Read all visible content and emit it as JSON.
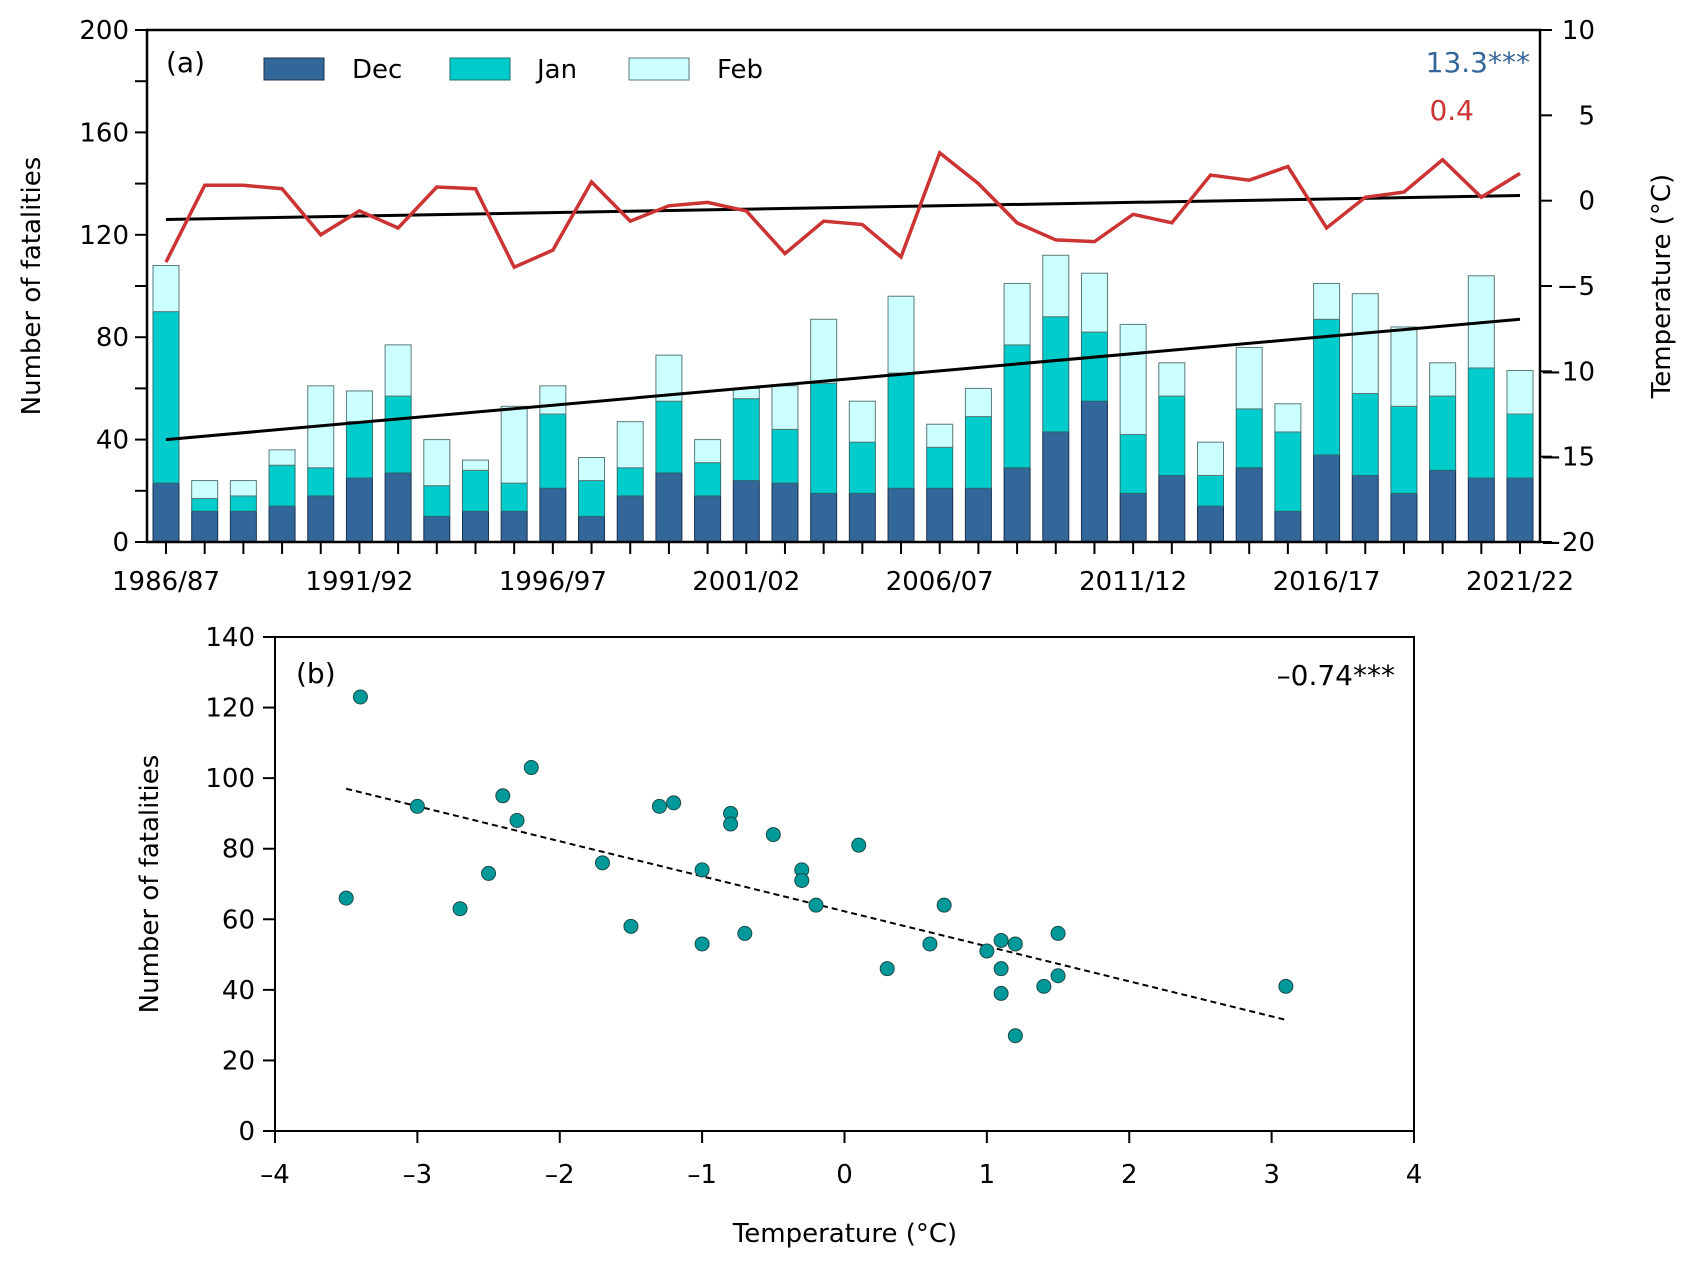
{
  "chart_data": [
    {
      "panel": "a",
      "type": "bar",
      "stacked": true,
      "panel_label": "(a)",
      "title": "",
      "xlabel": "",
      "ylabel": "Number of fatalities",
      "y2label": "Temperature (°C)",
      "ylim": [
        0,
        200
      ],
      "y2lim": [
        -20,
        10
      ],
      "yticks": [
        0,
        40,
        80,
        120,
        160,
        200
      ],
      "y2ticks": [
        -20,
        -15,
        -10,
        -5,
        0,
        5,
        10
      ],
      "grid": false,
      "legend_position": "top-left",
      "categories": [
        "1986/87",
        "1987/88",
        "1988/89",
        "1989/90",
        "1990/91",
        "1991/92",
        "1992/93",
        "1993/94",
        "1994/95",
        "1995/96",
        "1996/97",
        "1997/98",
        "1998/99",
        "1999/00",
        "2000/01",
        "2001/02",
        "2002/03",
        "2003/04",
        "2004/05",
        "2005/06",
        "2006/07",
        "2007/08",
        "2008/09",
        "2009/10",
        "2010/11",
        "2011/12",
        "2012/13",
        "2013/14",
        "2014/15",
        "2015/16",
        "2016/17",
        "2017/18",
        "2018/19",
        "2019/20",
        "2020/21",
        "2021/22"
      ],
      "xtick_labels": [
        "1986/87",
        "1991/92",
        "1996/97",
        "2001/02",
        "2006/07",
        "2011/12",
        "2016/17",
        "2021/22"
      ],
      "xtick_label_every": 5,
      "series": [
        {
          "name": "Dec",
          "color": "#336699",
          "values": [
            23,
            12,
            12,
            14,
            18,
            25,
            27,
            10,
            12,
            12,
            21,
            10,
            18,
            27,
            18,
            24,
            23,
            19,
            19,
            21,
            21,
            21,
            29,
            43,
            55,
            19,
            26,
            14,
            29,
            12,
            34,
            26,
            19,
            28,
            25,
            25
          ]
        },
        {
          "name": "Jan",
          "color": "#00CCCC",
          "values": [
            67,
            5,
            6,
            16,
            11,
            22,
            30,
            12,
            16,
            11,
            29,
            14,
            11,
            28,
            13,
            32,
            21,
            43,
            20,
            45,
            16,
            28,
            48,
            45,
            27,
            23,
            31,
            12,
            23,
            31,
            53,
            32,
            34,
            29,
            43,
            25
          ]
        },
        {
          "name": "Feb",
          "color": "#CCFFFF",
          "values": [
            18,
            7,
            6,
            6,
            32,
            12,
            20,
            18,
            4,
            30,
            11,
            9,
            18,
            18,
            9,
            4,
            17,
            25,
            16,
            30,
            9,
            11,
            24,
            24,
            23,
            43,
            13,
            13,
            24,
            11,
            14,
            39,
            31,
            13,
            36,
            17
          ]
        }
      ],
      "totals": [
        108,
        24,
        24,
        36,
        61,
        59,
        77,
        40,
        32,
        53,
        61,
        33,
        47,
        73,
        40,
        60,
        61,
        87,
        55,
        96,
        46,
        60,
        101,
        112,
        105,
        85,
        70,
        39,
        76,
        54,
        101,
        97,
        84,
        70,
        104,
        67
      ],
      "fatality_trend": {
        "start": 40,
        "end": 87,
        "label": "13.3***",
        "color": "#336699"
      },
      "temperature": {
        "name": "Temperature",
        "axis": "right",
        "color": "#CC3333",
        "values": [
          -3.6,
          0.9,
          0.9,
          0.7,
          -2.0,
          -0.6,
          -1.6,
          0.8,
          0.7,
          -3.9,
          -2.9,
          1.1,
          -1.2,
          -0.3,
          -0.1,
          -0.6,
          -3.1,
          -1.2,
          -1.4,
          -3.3,
          2.8,
          1.0,
          -1.3,
          -2.3,
          -2.4,
          -0.8,
          -1.3,
          1.5,
          1.2,
          2.0,
          -1.6,
          0.2,
          0.5,
          2.4,
          0.2,
          1.6
        ]
      },
      "temperature_trend": {
        "start": -1.1,
        "end": 0.3,
        "label": "0.4",
        "color": "#CC3333"
      }
    },
    {
      "panel": "b",
      "type": "scatter",
      "panel_label": "(b)",
      "title": "",
      "xlabel": "Temperature (°C)",
      "ylabel": "Number of fatalities",
      "xlim": [
        -4,
        4
      ],
      "ylim": [
        0,
        140
      ],
      "xticks": [
        -4,
        -3,
        -2,
        -1,
        0,
        1,
        2,
        3,
        4
      ],
      "yticks": [
        0,
        20,
        40,
        60,
        80,
        100,
        120,
        140
      ],
      "xtick_labels": [
        "–4",
        "–3",
        "–2",
        "–1",
        "0",
        "1",
        "2",
        "3",
        "4"
      ],
      "grid": false,
      "point_color": "#009999",
      "annotation": "–0.74***",
      "points": [
        {
          "x": -3.4,
          "y": 123
        },
        {
          "x": -3.5,
          "y": 66
        },
        {
          "x": -3.0,
          "y": 92
        },
        {
          "x": -2.7,
          "y": 63
        },
        {
          "x": -2.5,
          "y": 73
        },
        {
          "x": -2.4,
          "y": 95
        },
        {
          "x": -2.3,
          "y": 88
        },
        {
          "x": -2.2,
          "y": 103
        },
        {
          "x": -1.7,
          "y": 76
        },
        {
          "x": -1.5,
          "y": 58
        },
        {
          "x": -1.3,
          "y": 92
        },
        {
          "x": -1.2,
          "y": 93
        },
        {
          "x": -1.0,
          "y": 74
        },
        {
          "x": -1.0,
          "y": 53
        },
        {
          "x": -0.8,
          "y": 90
        },
        {
          "x": -0.8,
          "y": 87
        },
        {
          "x": -0.7,
          "y": 56
        },
        {
          "x": -0.5,
          "y": 84
        },
        {
          "x": -0.3,
          "y": 74
        },
        {
          "x": -0.3,
          "y": 71
        },
        {
          "x": -0.2,
          "y": 64
        },
        {
          "x": 0.1,
          "y": 81
        },
        {
          "x": 0.3,
          "y": 46
        },
        {
          "x": 0.6,
          "y": 53
        },
        {
          "x": 0.7,
          "y": 64
        },
        {
          "x": 1.0,
          "y": 51
        },
        {
          "x": 1.1,
          "y": 54
        },
        {
          "x": 1.1,
          "y": 46
        },
        {
          "x": 1.1,
          "y": 39
        },
        {
          "x": 1.2,
          "y": 53
        },
        {
          "x": 1.2,
          "y": 27
        },
        {
          "x": 1.4,
          "y": 41
        },
        {
          "x": 1.5,
          "y": 56
        },
        {
          "x": 1.5,
          "y": 44
        },
        {
          "x": 3.1,
          "y": 41
        }
      ],
      "regression": {
        "x": [
          -3.5,
          3.1
        ],
        "y": [
          97,
          31.5
        ],
        "style": "dashed"
      }
    }
  ]
}
